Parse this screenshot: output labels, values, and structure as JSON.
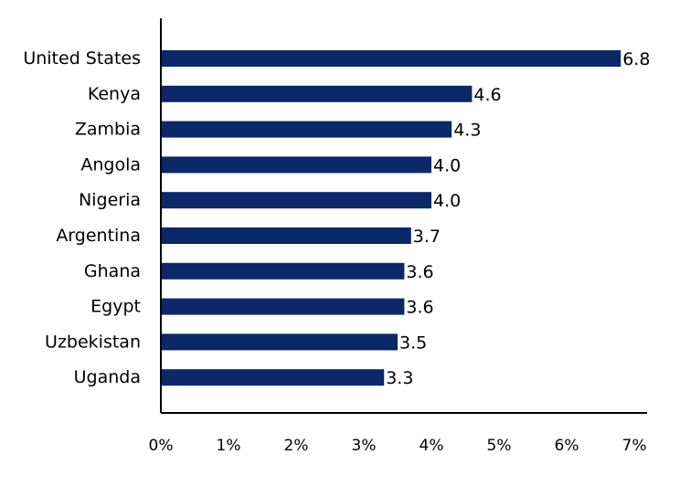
{
  "chart_data": {
    "type": "bar",
    "orientation": "horizontal",
    "title": "",
    "xlabel": "",
    "ylabel": "",
    "categories": [
      "United States",
      "Kenya",
      "Zambia",
      "Angola",
      "Nigeria",
      "Argentina",
      "Ghana",
      "Egypt",
      "Uzbekistan",
      "Uganda"
    ],
    "values": [
      6.8,
      4.6,
      4.3,
      4.0,
      4.0,
      3.7,
      3.6,
      3.6,
      3.5,
      3.3
    ],
    "data_labels": [
      "6.8",
      "4.6",
      "4.3",
      "4.0",
      "4.0",
      "3.7",
      "3.6",
      "3.6",
      "3.5",
      "3.3"
    ],
    "xlim": [
      0,
      7
    ],
    "x_ticks": [
      0,
      1,
      2,
      3,
      4,
      5,
      6,
      7
    ],
    "x_tick_labels": [
      "0%",
      "1%",
      "2%",
      "3%",
      "4%",
      "5%",
      "6%",
      "7%"
    ],
    "grid": false,
    "legend": "none",
    "colors": {
      "bar": "#0b2868",
      "axis": "#000000",
      "text": "#000000"
    }
  }
}
